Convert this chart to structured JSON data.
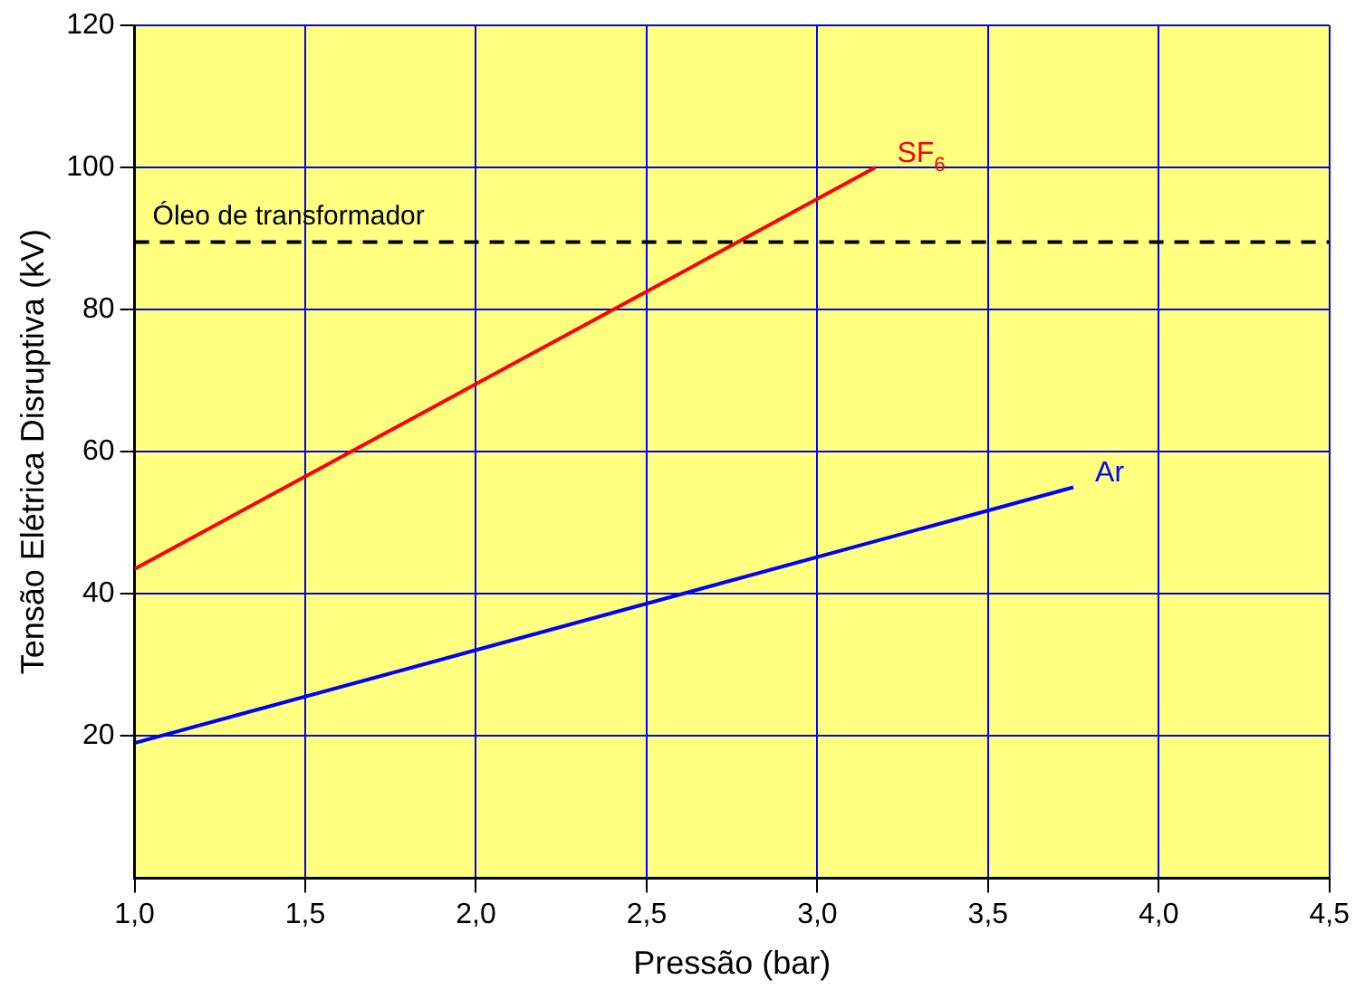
{
  "chart_data": {
    "type": "line",
    "xlabel": "Pressão (bar)",
    "ylabel": "Tensão Elétrica Disruptiva (kV)",
    "xlim": [
      1.0,
      4.5
    ],
    "xticks": [
      {
        "value": 1.0,
        "label": "1,0"
      },
      {
        "value": 1.5,
        "label": "1,5"
      },
      {
        "value": 2.0,
        "label": "2,0"
      },
      {
        "value": 2.5,
        "label": "2,5"
      },
      {
        "value": 3.0,
        "label": "3,0"
      },
      {
        "value": 3.5,
        "label": "3,5"
      },
      {
        "value": 4.0,
        "label": "4,0"
      },
      {
        "value": 4.5,
        "label": "4,5"
      }
    ],
    "ylim": [
      0,
      120
    ],
    "yticks": [
      20,
      40,
      60,
      80,
      100,
      120
    ],
    "series": [
      {
        "name": "SF$_{6}$",
        "color": "#ff0000",
        "x": [
          1.0,
          3.17
        ],
        "values": [
          43.5,
          100
        ]
      },
      {
        "name": "Ar",
        "color": "#0000ff",
        "x": [
          1.0,
          3.75
        ],
        "values": [
          19,
          55
        ]
      }
    ],
    "ref_lines": [
      {
        "axis": "y",
        "value": 89.5,
        "label": "Óleo de transformador",
        "color": "#000000",
        "line_style": "dashed"
      }
    ],
    "grid": true,
    "legend": false,
    "marker": "none",
    "line_style": "solid"
  }
}
